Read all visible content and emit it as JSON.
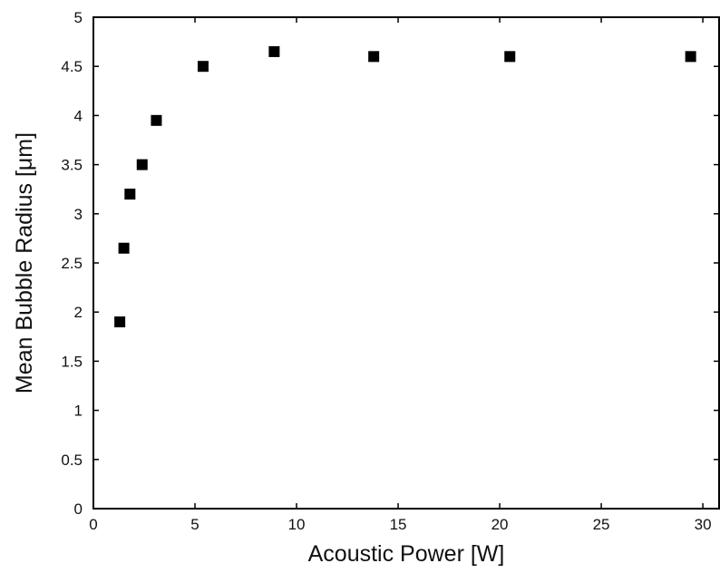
{
  "chart_data": {
    "type": "scatter",
    "title": "",
    "xlabel": "Acoustic Power [W]",
    "ylabel": "Mean Bubble Radius [μm]",
    "xlim": [
      0,
      30.8
    ],
    "ylim": [
      0,
      5
    ],
    "xticks": [
      0,
      5,
      10,
      15,
      20,
      25,
      30
    ],
    "yticks": [
      0,
      0.5,
      1,
      1.5,
      2,
      2.5,
      3,
      3.5,
      4,
      4.5,
      5
    ],
    "xtick_labels": [
      "0",
      "5",
      "10",
      "15",
      "20",
      "25",
      "30"
    ],
    "ytick_labels": [
      "0",
      "0.5",
      "1",
      "1.5",
      "2",
      "2.5",
      "3",
      "3.5",
      "4",
      "4.5",
      "5"
    ],
    "grid": false,
    "legend": "none",
    "marker": "square",
    "marker_color": "#000000",
    "series": [
      {
        "x": [
          1.3,
          1.5,
          1.8,
          2.4,
          3.1,
          5.4,
          8.9,
          13.8,
          20.5,
          29.4
        ],
        "y": [
          1.9,
          2.65,
          3.2,
          3.5,
          3.95,
          4.5,
          4.65,
          4.6,
          4.6,
          4.6
        ]
      }
    ]
  }
}
